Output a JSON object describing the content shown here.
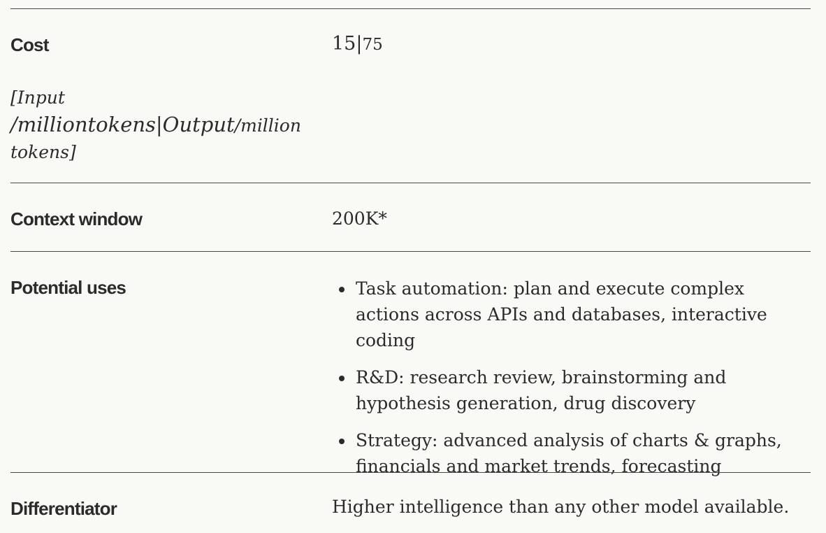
{
  "rows": {
    "cost": {
      "label": "Cost",
      "value_input": "15",
      "value_sep": "|",
      "value_output": "75",
      "note_line1": "[Input",
      "note_line2_a": "/milliontokens|Output",
      "note_line2_b": "/million",
      "note_line3": "tokens]"
    },
    "context": {
      "label": "Context window",
      "value": "200K*"
    },
    "uses": {
      "label": "Potential uses",
      "items": [
        "Task automation: plan and execute complex actions across APIs and databases, interactive coding",
        "R&D: research review, brainstorming and hypothesis generation, drug discovery",
        "Strategy: advanced analysis of charts & graphs, financials and market trends, forecasting"
      ]
    },
    "differentiator": {
      "label": "Differentiator",
      "value": "Higher intelligence than any other model available."
    }
  }
}
